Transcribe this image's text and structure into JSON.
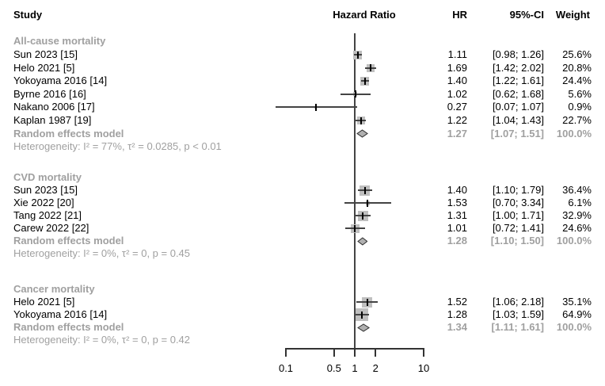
{
  "header": {
    "study": "Study",
    "hazard_ratio": "Hazard Ratio",
    "hr": "HR",
    "ci": "95%-CI",
    "weight": "Weight"
  },
  "colors": {
    "text": "#000000",
    "muted": "#a0a0a0",
    "square": "#bfbfbf",
    "ci_line": "#444444",
    "point_tick": "#000000",
    "diamond_fill": "#b0b0b0",
    "diamond_stroke": "#2b2b2b",
    "axis": "#333333"
  },
  "chart_data": {
    "type": "forest",
    "x_scale": "log",
    "reference_value": 1,
    "axis_ticks": [
      0.1,
      0.5,
      1,
      2,
      10
    ],
    "axis_tick_labels": [
      "0.1",
      "0.5",
      "1",
      "2",
      "10"
    ],
    "axis_range": [
      0.1,
      10
    ],
    "sections": [
      {
        "label": "All-cause mortality",
        "studies": [
          {
            "label": "Sun 2023 [15]",
            "hr": 1.11,
            "lo": 0.98,
            "hi": 1.26,
            "hr_text": "1.11",
            "ci_text": "[0.98; 1.26]",
            "weight": 25.6,
            "weight_text": "25.6%"
          },
          {
            "label": "Helo 2021 [5]",
            "hr": 1.69,
            "lo": 1.42,
            "hi": 2.02,
            "hr_text": "1.69",
            "ci_text": "[1.42; 2.02]",
            "weight": 20.8,
            "weight_text": "20.8%"
          },
          {
            "label": "Yokoyama 2016 [14]",
            "hr": 1.4,
            "lo": 1.22,
            "hi": 1.61,
            "hr_text": "1.40",
            "ci_text": "[1.22; 1.61]",
            "weight": 24.4,
            "weight_text": "24.4%"
          },
          {
            "label": "Byrne 2016 [16]",
            "hr": 1.02,
            "lo": 0.62,
            "hi": 1.68,
            "hr_text": "1.02",
            "ci_text": "[0.62; 1.68]",
            "weight": 5.6,
            "weight_text": "5.6%"
          },
          {
            "label": "Nakano 2006 [17]",
            "hr": 0.27,
            "lo": 0.07,
            "hi": 1.07,
            "hr_text": "0.27",
            "ci_text": "[0.07; 1.07]",
            "weight": 0.9,
            "weight_text": "0.9%"
          },
          {
            "label": "Kaplan 1987 [19]",
            "hr": 1.22,
            "lo": 1.04,
            "hi": 1.43,
            "hr_text": "1.22",
            "ci_text": "[1.04; 1.43]",
            "weight": 22.7,
            "weight_text": "22.7%"
          }
        ],
        "summary": {
          "label": "Random effects model",
          "hr": 1.27,
          "lo": 1.07,
          "hi": 1.51,
          "hr_text": "1.27",
          "ci_text": "[1.07; 1.51]",
          "weight_text": "100.0%"
        },
        "heterogeneity": "Heterogeneity: I² = 77%, τ² = 0.0285, p < 0.01"
      },
      {
        "label": "CVD mortality",
        "studies": [
          {
            "label": "Sun 2023 [15]",
            "hr": 1.4,
            "lo": 1.1,
            "hi": 1.79,
            "hr_text": "1.40",
            "ci_text": "[1.10; 1.79]",
            "weight": 36.4,
            "weight_text": "36.4%"
          },
          {
            "label": "Xie 2022 [20]",
            "hr": 1.53,
            "lo": 0.7,
            "hi": 3.34,
            "hr_text": "1.53",
            "ci_text": "[0.70; 3.34]",
            "weight": 6.1,
            "weight_text": "6.1%"
          },
          {
            "label": "Tang 2022 [21]",
            "hr": 1.31,
            "lo": 1.0,
            "hi": 1.71,
            "hr_text": "1.31",
            "ci_text": "[1.00; 1.71]",
            "weight": 32.9,
            "weight_text": "32.9%"
          },
          {
            "label": "Carew 2022 [22]",
            "hr": 1.01,
            "lo": 0.72,
            "hi": 1.41,
            "hr_text": "1.01",
            "ci_text": "[0.72; 1.41]",
            "weight": 24.6,
            "weight_text": "24.6%"
          }
        ],
        "summary": {
          "label": "Random effects model",
          "hr": 1.28,
          "lo": 1.1,
          "hi": 1.5,
          "hr_text": "1.28",
          "ci_text": "[1.10; 1.50]",
          "weight_text": "100.0%"
        },
        "heterogeneity": "Heterogeneity: I² = 0%, τ² = 0, p = 0.45"
      },
      {
        "label": "Cancer mortality",
        "studies": [
          {
            "label": "Helo 2021 [5]",
            "hr": 1.52,
            "lo": 1.06,
            "hi": 2.18,
            "hr_text": "1.52",
            "ci_text": "[1.06; 2.18]",
            "weight": 35.1,
            "weight_text": "35.1%"
          },
          {
            "label": "Yokoyama 2016 [14]",
            "hr": 1.28,
            "lo": 1.03,
            "hi": 1.59,
            "hr_text": "1.28",
            "ci_text": "[1.03; 1.59]",
            "weight": 64.9,
            "weight_text": "64.9%"
          }
        ],
        "summary": {
          "label": "Random effects model",
          "hr": 1.34,
          "lo": 1.11,
          "hi": 1.61,
          "hr_text": "1.34",
          "ci_text": "[1.11; 1.61]",
          "weight_text": "100.0%"
        },
        "heterogeneity": "Heterogeneity: I² = 0%, τ² = 0, p = 0.42"
      }
    ]
  }
}
